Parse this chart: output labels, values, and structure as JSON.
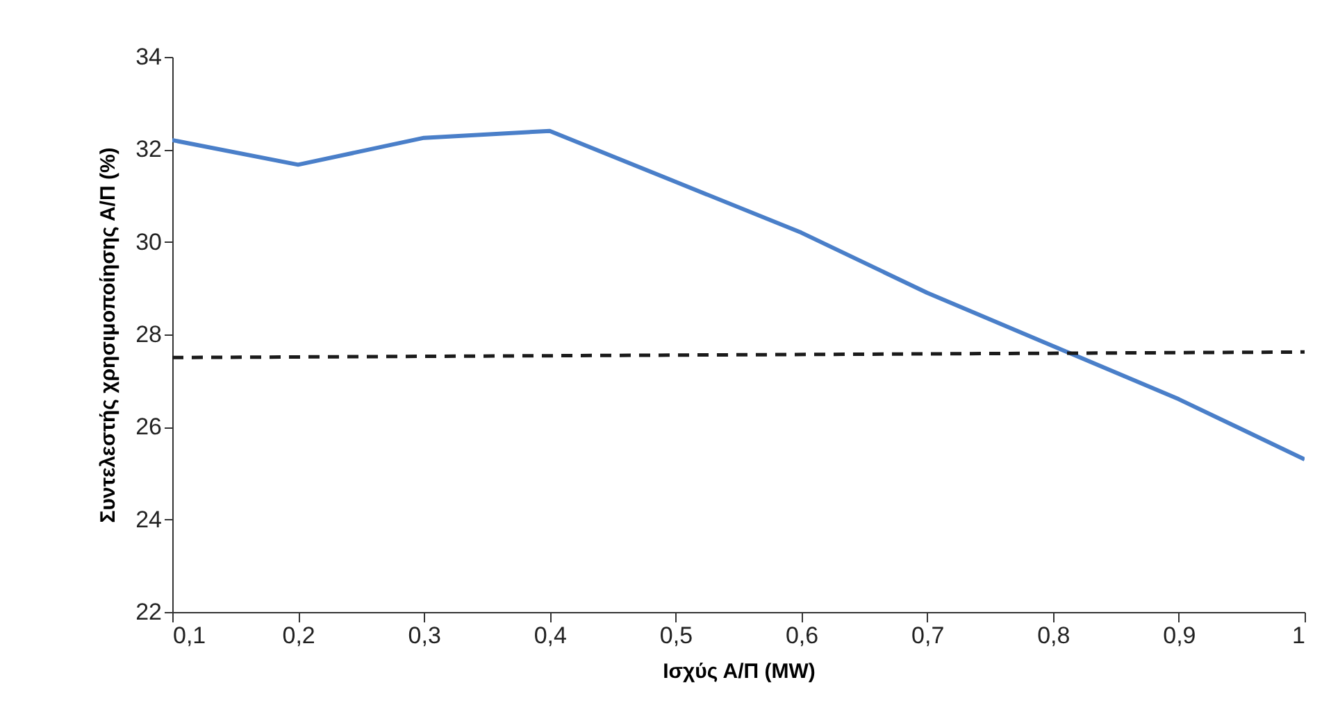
{
  "chart_data": {
    "type": "line",
    "xlabel": "Ισχύς Α/Π (MW)",
    "ylabel": "Συντελεστής χρησιμοποίησης Α/Π (%)",
    "x": [
      0.1,
      0.2,
      0.3,
      0.4,
      0.5,
      0.6,
      0.7,
      0.8,
      0.9,
      1
    ],
    "series": [
      {
        "color": "#4a7fc9",
        "values": [
          32.2,
          31.67,
          32.25,
          32.4,
          31.3,
          30.2,
          28.9,
          27.75,
          26.6,
          25.3
        ],
        "line_style": "solid"
      },
      {
        "color": "#1a1a1a",
        "x": [
          0.1,
          1
        ],
        "values": [
          27.5,
          27.62
        ],
        "line_style": "dashed"
      }
    ],
    "xlim": [
      0.1,
      1
    ],
    "xticks": [
      {
        "value": 0.1,
        "label": "0,1"
      },
      {
        "value": 0.2,
        "label": "0,2"
      },
      {
        "value": 0.3,
        "label": "0,3"
      },
      {
        "value": 0.4,
        "label": "0,4"
      },
      {
        "value": 0.5,
        "label": "0,5"
      },
      {
        "value": 0.6,
        "label": "0,6"
      },
      {
        "value": 0.7,
        "label": "0,7"
      },
      {
        "value": 0.8,
        "label": "0,8"
      },
      {
        "value": 0.9,
        "label": "0,9"
      },
      1
    ],
    "ylim": [
      22,
      34
    ],
    "yticks": [
      22,
      24,
      26,
      28,
      30,
      32,
      34
    ],
    "grid": false,
    "marker": "none"
  }
}
